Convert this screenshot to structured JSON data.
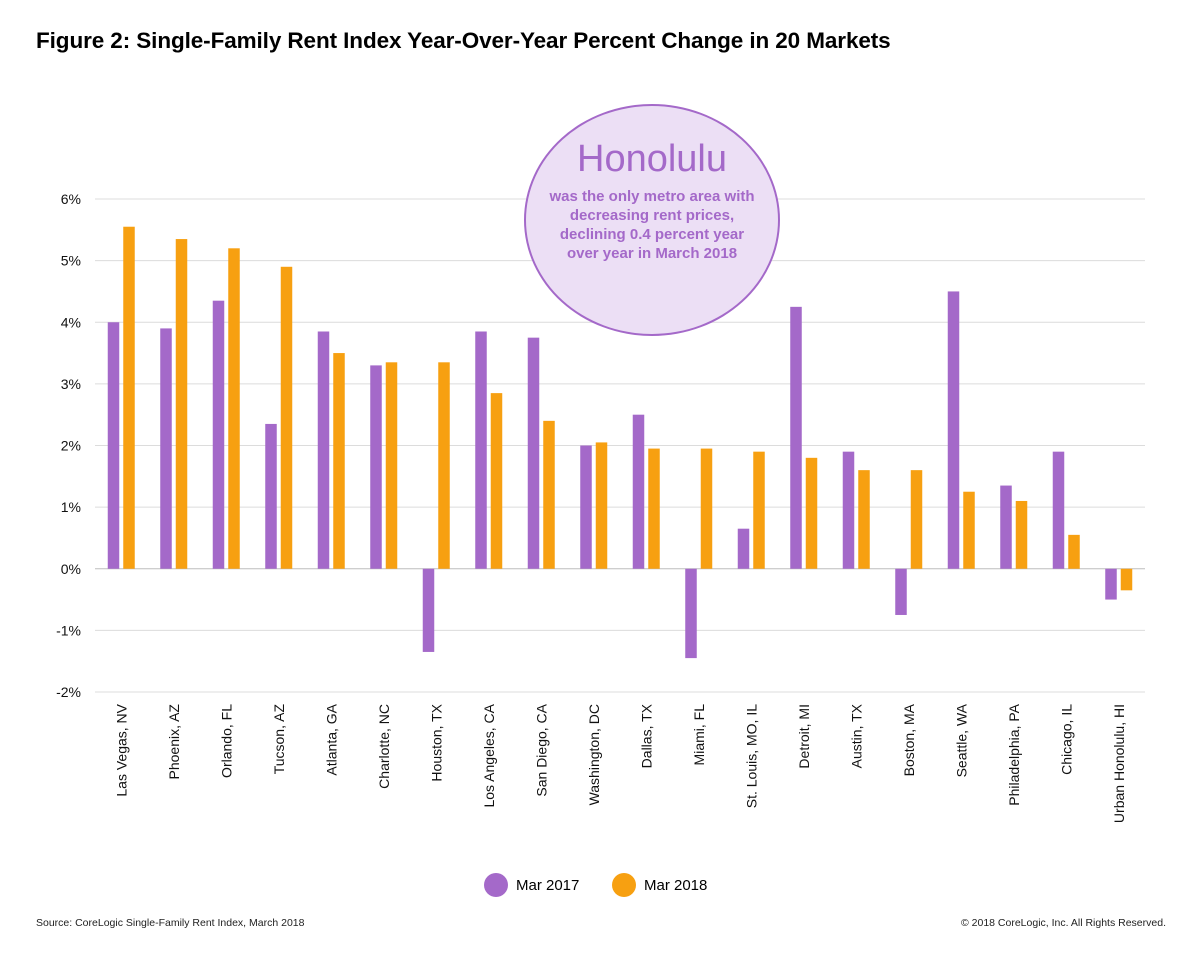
{
  "title": "Figure 2: Single-Family Rent Index Year-Over-Year Percent Change in 20 Markets",
  "callout": {
    "heading": "Honolulu",
    "body": "was the only metro area with decreasing rent prices, declining 0.4 percent year over year in March 2018"
  },
  "source": "Source: CoreLogic Single-Family Rent Index, March 2018",
  "copyright": "© 2018 CoreLogic, Inc. All Rights Reserved.",
  "colors": {
    "series1": "#a469c9",
    "series2": "#f7a011"
  },
  "chart_data": {
    "type": "bar",
    "categories": [
      "Las Vegas, NV",
      "Phoenix, AZ",
      "Orlando, FL",
      "Tucson, AZ",
      "Atlanta, GA",
      "Charlotte, NC",
      "Houston, TX",
      "Los Angeles, CA",
      "San Diego, CA",
      "Washington, DC",
      "Dallas, TX",
      "Miami, FL",
      "St. Louis, MO, IL",
      "Detroit, MI",
      "Austin, TX",
      "Boston, MA",
      "Seattle, WA",
      "Philadelphia, PA",
      "Chicago, IL",
      "Urban Honolulu, HI"
    ],
    "series": [
      {
        "name": "Mar 2017",
        "values": [
          4.0,
          3.9,
          4.35,
          2.35,
          3.85,
          3.3,
          -1.35,
          3.85,
          3.75,
          2.0,
          2.5,
          -1.45,
          0.65,
          4.25,
          1.9,
          -0.75,
          4.5,
          1.35,
          1.9,
          -0.5
        ]
      },
      {
        "name": "Mar 2018",
        "values": [
          5.55,
          5.35,
          5.2,
          4.9,
          3.5,
          3.35,
          3.35,
          2.85,
          2.4,
          2.05,
          1.95,
          1.95,
          1.9,
          1.8,
          1.6,
          1.6,
          1.25,
          1.1,
          0.55,
          -0.35
        ]
      }
    ],
    "ylim": [
      -2,
      6
    ],
    "yticks": [
      "-2%",
      "-1%",
      "0%",
      "1%",
      "2%",
      "3%",
      "4%",
      "5%",
      "6%"
    ],
    "legend": "bottom-center",
    "grid": true
  }
}
